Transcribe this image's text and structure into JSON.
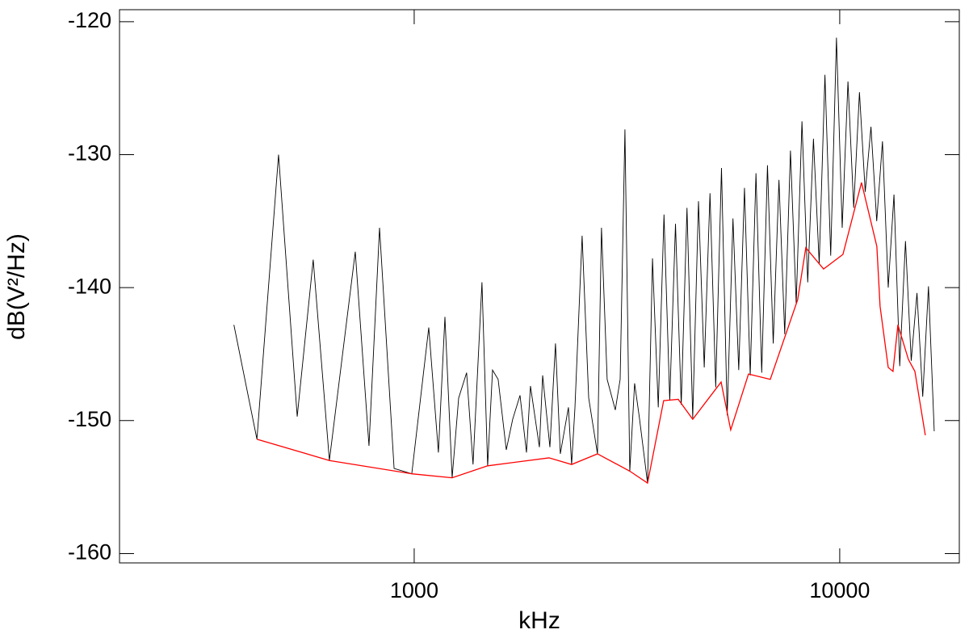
{
  "chart_data": {
    "type": "line",
    "x_label": "kHz",
    "y_label": "dB(V²/Hz)",
    "xscale": "log",
    "xlim": [
      203,
      19100
    ],
    "ylim": [
      -160.7,
      -119.1
    ],
    "xticks": [
      1000,
      10000
    ],
    "yticks": [
      -120,
      -130,
      -140,
      -150,
      -160
    ],
    "series": [
      {
        "color": "#000000",
        "x": [
          377,
          427,
          480,
          531,
          579,
          632,
          727,
          783,
          829,
          897,
          987,
          1082,
          1140,
          1181,
          1228,
          1272,
          1328,
          1375,
          1443,
          1488,
          1528,
          1575,
          1646,
          1704,
          1773,
          1836,
          1876,
          1969,
          2004,
          2084,
          2148,
          2205,
          2304,
          2344,
          2386,
          2481,
          2571,
          2696,
          2755,
          2841,
          2969,
          3048,
          3128,
          3211,
          3296,
          3383,
          3535,
          3631,
          3746,
          3864,
          3986,
          4112,
          4242,
          4376,
          4514,
          4657,
          4804,
          4956,
          5112,
          5274,
          5440,
          5612,
          5790,
          5973,
          6161,
          6356,
          6557,
          6764,
          6978,
          7198,
          7426,
          7660,
          7902,
          8152,
          8410,
          8675,
          8949,
          9232,
          9524,
          9825,
          10135,
          10456,
          10786,
          11127,
          11479,
          11842,
          12216,
          12603,
          13001,
          13412,
          13836,
          14273,
          14724,
          15190,
          15670,
          16165,
          16676
        ],
        "values": [
          -142.8,
          -151.4,
          -130.0,
          -149.7,
          -137.9,
          -153.0,
          -137.3,
          -151.9,
          -135.5,
          -153.6,
          -154.0,
          -143.0,
          -152.4,
          -142.2,
          -154.3,
          -148.3,
          -146.4,
          -153.3,
          -139.6,
          -153.4,
          -146.2,
          -146.9,
          -152.2,
          -149.9,
          -148.1,
          -152.4,
          -147.4,
          -152.0,
          -146.6,
          -152.0,
          -144.2,
          -152.5,
          -149.0,
          -153.3,
          -149.1,
          -136.1,
          -148.3,
          -152.5,
          -135.5,
          -146.9,
          -149.2,
          -146.9,
          -128.1,
          -153.8,
          -147.2,
          -149.8,
          -154.7,
          -137.8,
          -149.0,
          -134.5,
          -148.5,
          -135.2,
          -148.8,
          -134.0,
          -149.8,
          -133.5,
          -146.0,
          -132.9,
          -147.5,
          -131.0,
          -149.6,
          -134.8,
          -146.2,
          -132.5,
          -146.6,
          -131.4,
          -146.4,
          -130.8,
          -144.2,
          -131.9,
          -143.5,
          -129.7,
          -141.2,
          -127.5,
          -139.6,
          -128.8,
          -138.2,
          -124.0,
          -137.6,
          -121.2,
          -135.5,
          -124.5,
          -134.0,
          -125.3,
          -132.8,
          -127.9,
          -135.0,
          -129.0,
          -140.0,
          -133.0,
          -145.9,
          -136.5,
          -145.5,
          -140.4,
          -148.2,
          -139.9,
          -150.8
        ]
      },
      {
        "color": "#ff0000",
        "x": [
          427,
          632,
          987,
          1228,
          1488,
          2074,
          2344,
          2696,
          3211,
          3535,
          3857,
          4174,
          4514,
          5263,
          5544,
          6104,
          6868,
          7966,
          8323,
          9163,
          10176,
          11252,
          12225,
          12440,
          13000,
          13340,
          13700,
          14500,
          15020,
          15890
        ],
        "values": [
          -151.4,
          -153.0,
          -154.0,
          -154.3,
          -153.4,
          -152.8,
          -153.3,
          -152.5,
          -153.8,
          -154.7,
          -148.5,
          -148.4,
          -149.9,
          -147.1,
          -150.7,
          -146.5,
          -146.9,
          -140.9,
          -137.0,
          -138.6,
          -137.5,
          -132.1,
          -136.9,
          -141.4,
          -146.0,
          -146.3,
          -142.8,
          -145.4,
          -146.3,
          -151.1
        ]
      }
    ]
  }
}
